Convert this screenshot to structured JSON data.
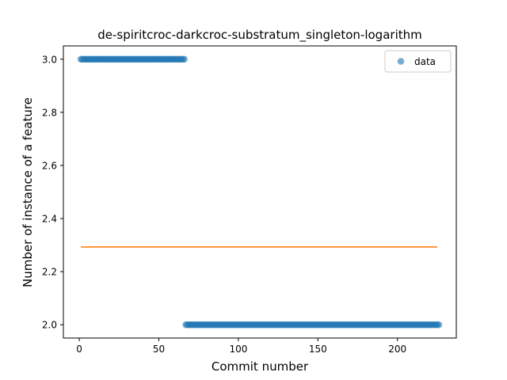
{
  "chart_data": {
    "type": "scatter",
    "title": "de-spiritcroc-darkcroc-substratum_singleton-logarithm",
    "xlabel": "Commit number",
    "ylabel": "Number of instance of a feature",
    "xlim": [
      -10,
      237
    ],
    "ylim": [
      1.95,
      3.05
    ],
    "xticks": [
      0,
      50,
      100,
      150,
      200
    ],
    "yticks": [
      2.0,
      2.2,
      2.4,
      2.6,
      2.8,
      3.0
    ],
    "ytick_labels": [
      "2.0",
      "2.2",
      "2.4",
      "2.6",
      "2.8",
      "3.0"
    ],
    "legend": {
      "position": "top-right",
      "entries": [
        "data"
      ]
    },
    "series": [
      {
        "name": "data",
        "kind": "scatter",
        "color": "#1f77b4",
        "segments": [
          {
            "x_start": 1,
            "x_end": 66,
            "y": 3.0
          },
          {
            "x_start": 67,
            "x_end": 226,
            "y": 2.0
          }
        ]
      },
      {
        "kind": "line",
        "color": "#ff7f0e",
        "x": [
          1,
          225
        ],
        "y": [
          2.293,
          2.293
        ]
      }
    ],
    "grid": false
  }
}
